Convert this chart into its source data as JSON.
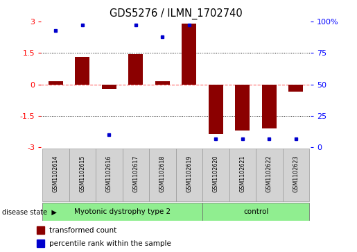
{
  "title": "GDS5276 / ILMN_1702740",
  "samples": [
    "GSM1102614",
    "GSM1102615",
    "GSM1102616",
    "GSM1102617",
    "GSM1102618",
    "GSM1102619",
    "GSM1102620",
    "GSM1102621",
    "GSM1102622",
    "GSM1102623"
  ],
  "transformed_counts": [
    0.15,
    1.3,
    -0.2,
    1.45,
    0.15,
    2.9,
    -2.35,
    -2.2,
    -2.1,
    -0.35
  ],
  "percentile_ranks": [
    93,
    97,
    10,
    97,
    88,
    97,
    7,
    7,
    7,
    7
  ],
  "group1_label": "Myotonic dystrophy type 2",
  "group2_label": "control",
  "group1_count": 6,
  "group2_count": 4,
  "group_color": "#90EE90",
  "bar_color": "#8B0000",
  "dot_color": "#0000CD",
  "ylim": [
    -3,
    3
  ],
  "yticks_left": [
    -3,
    -1.5,
    0,
    1.5,
    3
  ],
  "yticks_right_vals": [
    0,
    25,
    50,
    75,
    100
  ],
  "yticks_right_labels": [
    "0",
    "25",
    "50",
    "75",
    "100%"
  ],
  "dotted_lines": [
    1.5,
    -1.5
  ],
  "zero_line_color": "#FF6666",
  "legend_label_bar": "transformed count",
  "legend_label_dot": "percentile rank within the sample",
  "disease_state_label": "disease state",
  "background_color": "#ffffff",
  "sample_box_color": "#d3d3d3",
  "sample_box_edge": "#999999"
}
